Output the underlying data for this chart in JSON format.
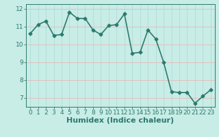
{
  "x": [
    0,
    1,
    2,
    3,
    4,
    5,
    6,
    7,
    8,
    9,
    10,
    11,
    12,
    13,
    14,
    15,
    16,
    17,
    18,
    19,
    20,
    21,
    22,
    23
  ],
  "y": [
    10.6,
    11.1,
    11.3,
    10.5,
    10.55,
    11.8,
    11.45,
    11.45,
    10.8,
    10.55,
    11.05,
    11.1,
    11.7,
    9.5,
    9.55,
    10.8,
    10.3,
    9.0,
    7.35,
    7.3,
    7.3,
    6.7,
    7.1,
    7.45
  ],
  "line_color": "#2d7a6e",
  "marker": "D",
  "marker_size": 2.5,
  "bg_color": "#c8ece6",
  "vgrid_color": "#b0ddd8",
  "hgrid_color": "#e8b8b8",
  "tick_color": "#2d7a6e",
  "spine_color": "#2d7a6e",
  "xlabel": "Humidex (Indice chaleur)",
  "xlabel_fontsize": 8,
  "xlabel_color": "#2d7a6e",
  "ylim": [
    6.5,
    12.25
  ],
  "xlim": [
    -0.5,
    23.5
  ],
  "yticks": [
    7,
    8,
    9,
    10,
    11,
    12
  ],
  "xticks": [
    0,
    1,
    2,
    3,
    4,
    5,
    6,
    7,
    8,
    9,
    10,
    11,
    12,
    13,
    14,
    15,
    16,
    17,
    18,
    19,
    20,
    21,
    22,
    23
  ],
  "tick_fontsize": 6.5,
  "linewidth": 1.2
}
